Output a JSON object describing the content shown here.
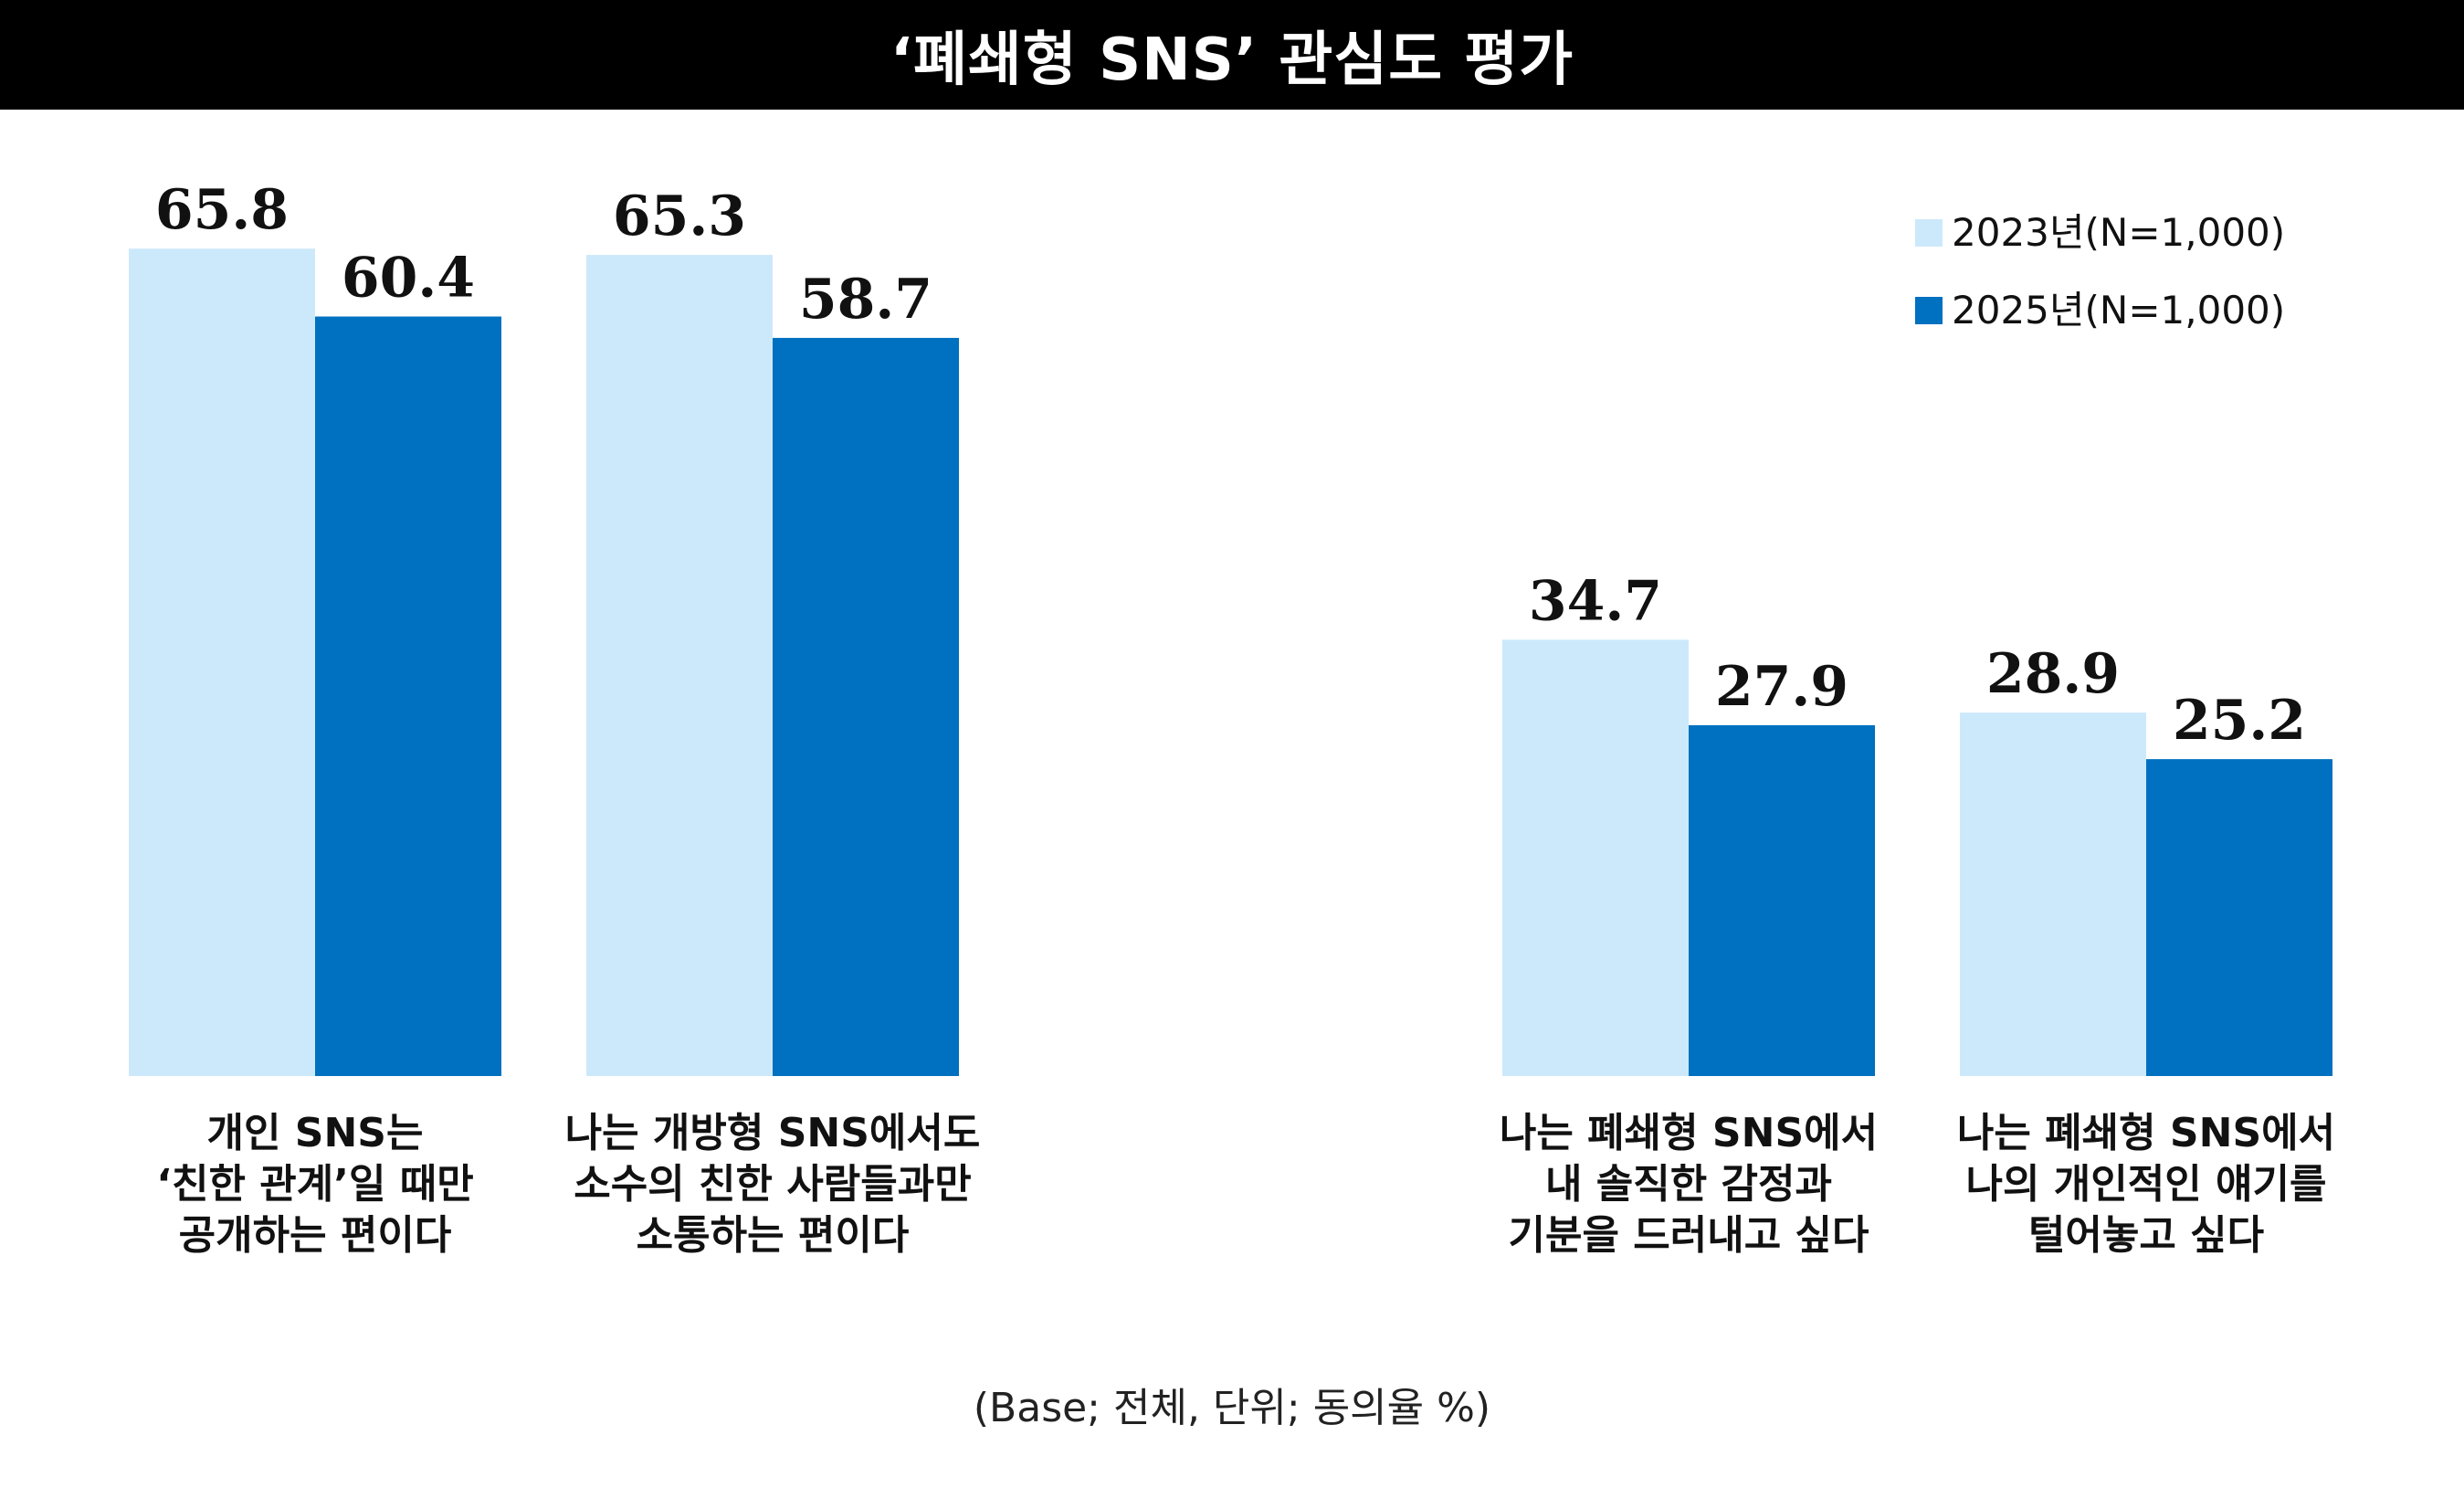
{
  "chart_data": {
    "type": "bar",
    "title": "‘폐쇄형 SNS’ 관심도 평가",
    "footnote": "(Base; 전체, 단위; 동의율 %)",
    "categories": [
      [
        "개인 SNS는",
        "‘친한 관계’일 때만",
        "공개하는 편이다"
      ],
      [
        "나는 개방형 SNS에서도",
        "소수의 친한 사람들과만",
        "소통하는 편이다"
      ],
      [
        "나는 폐쇄형 SNS에서",
        "내 솔직한 감정과",
        "기분을 드러내고 싶다"
      ],
      [
        "나는 폐쇄형 SNS에서",
        "나의 개인적인 얘기를",
        "털어놓고 싶다"
      ]
    ],
    "series": [
      {
        "name": "2023년(N=1,000)",
        "color": "#cce9fb",
        "values": [
          65.8,
          65.3,
          34.7,
          28.9
        ]
      },
      {
        "name": "2025년(N=1,000)",
        "color": "#0070c0",
        "values": [
          60.4,
          58.7,
          27.9,
          25.2
        ]
      }
    ],
    "ylim": [
      0,
      77
    ],
    "grid": false,
    "legend_position": "top-right"
  }
}
